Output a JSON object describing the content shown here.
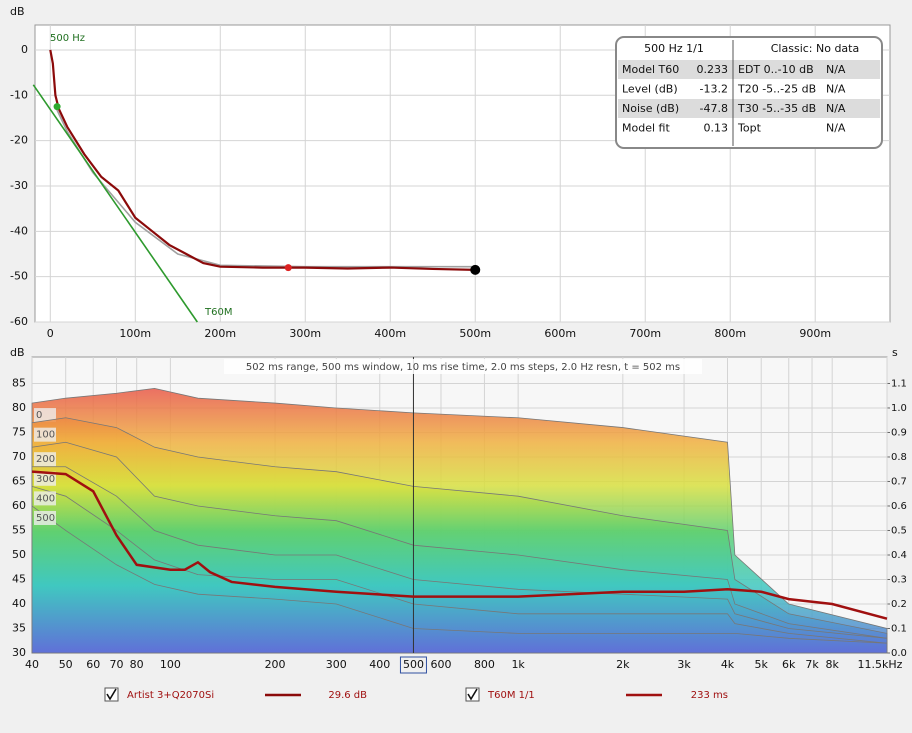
{
  "chart_data": [
    {
      "type": "line",
      "y_label": "dB",
      "xlim": [
        -0.018,
        0.988
      ],
      "ylim": [
        -60,
        5.5
      ],
      "xticks": [
        0,
        {
          "value": 0.1,
          "label": "100m"
        },
        {
          "value": 0.2,
          "label": "200m"
        },
        {
          "value": 0.3,
          "label": "300m"
        },
        {
          "value": 0.4,
          "label": "400m"
        },
        {
          "value": 0.5,
          "label": "500m"
        },
        {
          "value": 0.6,
          "label": "600m"
        },
        {
          "value": 0.7,
          "label": "700m"
        },
        {
          "value": 0.8,
          "label": "800m"
        },
        {
          "value": 0.9,
          "label": "900m"
        }
      ],
      "yticks": [
        0,
        -10,
        -20,
        -30,
        -40,
        -50,
        -60
      ],
      "grid": true,
      "annotations": [
        "500 Hz",
        "T60M"
      ],
      "series": [
        {
          "color": "#a0a0a0",
          "x": [
            0.006,
            0.02,
            0.05,
            0.1,
            0.15,
            0.2,
            0.3,
            0.4,
            0.5
          ],
          "values": [
            -12.5,
            -18,
            -27,
            -38,
            -45,
            -47.5,
            -47.8,
            -47.8,
            -47.8
          ]
        },
        {
          "color": "#8b0a0a",
          "x": [
            0,
            0.003,
            0.006,
            0.01,
            0.02,
            0.04,
            0.06,
            0.08,
            0.1,
            0.12,
            0.14,
            0.16,
            0.18,
            0.2,
            0.25,
            0.3,
            0.35,
            0.4,
            0.45,
            0.5
          ],
          "values": [
            0,
            -3,
            -10,
            -13,
            -17,
            -23,
            -28,
            -31,
            -37,
            -40,
            -43,
            -45,
            -47,
            -47.8,
            -48,
            -48,
            -48.2,
            -48,
            -48.3,
            -48.5
          ]
        },
        {
          "color": "#2e9a2e",
          "x": [
            -0.02,
            0.173
          ],
          "values": [
            -7.7,
            -60
          ]
        }
      ],
      "markers": [
        {
          "x": 0.008,
          "y": -12.5,
          "color": "#2eaa2e"
        },
        {
          "x": 0.28,
          "y": -48,
          "color": "#dd2222"
        },
        {
          "x": 0.5,
          "y": -48.5,
          "color": "#000000"
        }
      ],
      "info": {
        "header": [
          "500 Hz 1/1",
          "Classic: No data"
        ],
        "rows": [
          [
            "Model T60",
            0.233,
            "EDT 0..-10 dB",
            "N/A"
          ],
          [
            "Level (dB)",
            -13.2,
            "T20 -5..-25 dB",
            "N/A"
          ],
          [
            "Noise (dB)",
            -47.8,
            "T30 -5..-35 dB",
            "N/A"
          ],
          [
            "Model fit",
            0.13,
            "Topt",
            "N/A"
          ]
        ]
      }
    },
    {
      "type": "waterfall",
      "y_label": "dB",
      "y2_label": "s",
      "subtitle": "502 ms range, 500 ms window, 10 ms rise time, 2.0 ms steps,  2.0 Hz resn, t = 502 ms",
      "log_x": true,
      "cursor_x": 500,
      "xlim": [
        40,
        11500
      ],
      "ylim": [
        30,
        90.4
      ],
      "y2lim": [
        0,
        1.208
      ],
      "xticks": [
        40,
        50,
        60,
        70,
        80,
        100,
        200,
        300,
        400,
        500,
        600,
        800,
        {
          "value": 1000,
          "label": "1k"
        },
        {
          "value": 2000,
          "label": "2k"
        },
        {
          "value": 3000,
          "label": "3k"
        },
        {
          "value": 4000,
          "label": "4k"
        },
        {
          "value": 5000,
          "label": "5k"
        },
        {
          "value": 6000,
          "label": "6k"
        },
        {
          "value": 7000,
          "label": "7k"
        },
        {
          "value": 8000,
          "label": "8k"
        },
        {
          "value": 11500,
          "label": "11.5kHz"
        }
      ],
      "yticks": [
        30,
        35,
        40,
        45,
        50,
        55,
        60,
        65,
        70,
        75,
        80,
        85
      ],
      "y2ticks": [
        {
          "value": 0,
          "label": "0.0"
        },
        0.1,
        0.2,
        0.3,
        0.4,
        0.5,
        0.6,
        0.7,
        0.8,
        0.9,
        {
          "value": 1,
          "label": "1.0"
        },
        1.1
      ],
      "x": [
        40,
        50,
        70,
        90,
        120,
        200,
        300,
        500,
        1000,
        2000,
        4000,
        4200,
        6000,
        11500
      ],
      "series": [
        {
          "name": "Artist 3+Q2070Si",
          "color": "#8b0a0a",
          "readout": "29.6 dB",
          "slices": [
            {
              "time": 0,
              "values": [
                81,
                82,
                83,
                84,
                82,
                81,
                80,
                79,
                78,
                76,
                73,
                50,
                40,
                35
              ]
            },
            {
              "time": 100,
              "values": [
                77,
                78,
                76,
                72,
                70,
                68,
                67,
                64,
                62,
                58,
                55,
                45,
                38,
                34
              ]
            },
            {
              "time": 200,
              "values": [
                72,
                73,
                70,
                62,
                60,
                58,
                57,
                52,
                50,
                47,
                45,
                40,
                36,
                33
              ]
            },
            {
              "time": 300,
              "values": [
                68,
                68,
                62,
                55,
                52,
                50,
                50,
                45,
                43,
                42,
                41,
                38,
                35,
                33
              ]
            },
            {
              "time": 400,
              "values": [
                64,
                62,
                55,
                49,
                46,
                45,
                45,
                40,
                38,
                38,
                38,
                36,
                34,
                32
              ]
            },
            {
              "time": 500,
              "values": [
                60,
                55,
                48,
                44,
                42,
                41,
                40,
                35,
                34,
                34,
                34,
                34,
                33,
                32
              ]
            }
          ]
        },
        {
          "name": "T60M 1/1",
          "color": "#a01010",
          "readout": "233 ms",
          "axis": "y2",
          "x": [
            40,
            50,
            60,
            70,
            80,
            100,
            110,
            120,
            130,
            150,
            200,
            300,
            500,
            700,
            1000,
            2000,
            3000,
            4000,
            5000,
            6000,
            8000,
            11500
          ],
          "values": [
            0.74,
            0.73,
            0.66,
            0.48,
            0.36,
            0.34,
            0.34,
            0.37,
            0.33,
            0.29,
            0.27,
            0.25,
            0.23,
            0.23,
            0.23,
            0.25,
            0.25,
            0.26,
            0.25,
            0.22,
            0.2,
            0.14
          ]
        }
      ]
    }
  ]
}
